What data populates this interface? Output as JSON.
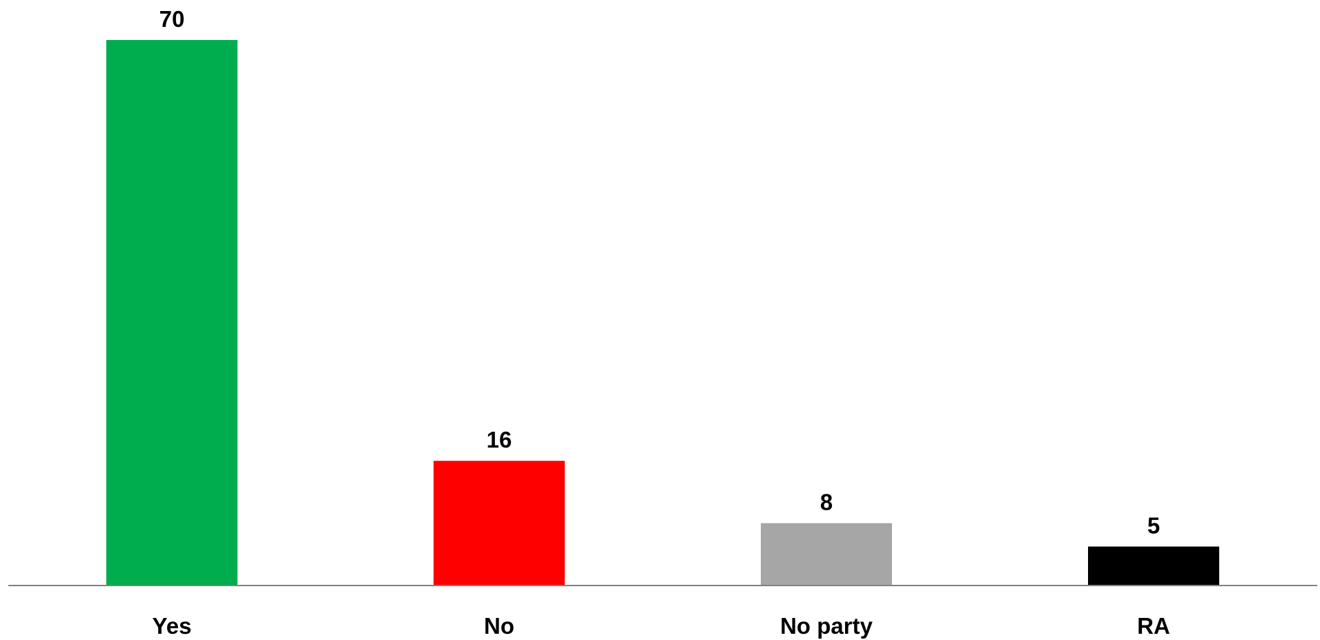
{
  "chart_data": {
    "type": "bar",
    "categories": [
      "Yes",
      "No",
      "No party",
      "RA"
    ],
    "values": [
      70,
      16,
      8,
      5
    ],
    "data_labels": [
      "70",
      "16",
      "8",
      "5"
    ],
    "colors": [
      "#00AD4E",
      "#FF0000",
      "#A6A6A6",
      "#000000"
    ],
    "axis_color": "#808080",
    "title": "",
    "xlabel": "",
    "ylabel": "",
    "ylim": [
      0,
      70
    ],
    "grid": false,
    "legend": "none"
  }
}
